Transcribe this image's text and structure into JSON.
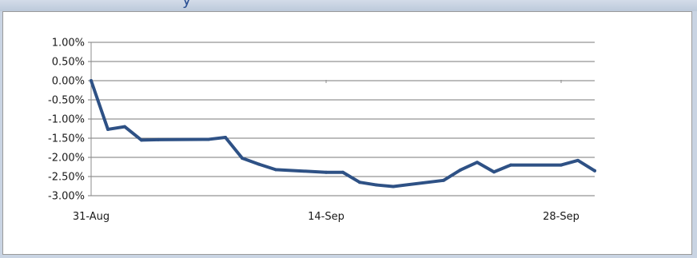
{
  "header": {
    "title_fragment": "y"
  },
  "colors": {
    "series_line": "#2e5185",
    "axis_line": "#8c8c8c",
    "grid_line": "#7a7a7a",
    "title_text": "#2a4f93"
  },
  "chart_data": {
    "type": "line",
    "title": "",
    "xlabel": "",
    "ylabel": "",
    "grid": true,
    "legend": "none",
    "x_tick_labels": [
      "31-Aug",
      "14-Sep",
      "28-Sep"
    ],
    "y_tick_labels": [
      "1.00%",
      "0.50%",
      "0.00%",
      "-0.50%",
      "-1.00%",
      "-1.50%",
      "-2.00%",
      "-2.50%",
      "-3.00%"
    ],
    "ylim": [
      -3.0,
      1.0
    ],
    "xlim": [
      "2015-08-31",
      "2015-09-30"
    ],
    "series": [
      {
        "x": [
          "2015-08-31",
          "2015-09-01",
          "2015-09-02",
          "2015-09-03",
          "2015-09-04",
          "2015-09-07",
          "2015-09-08",
          "2015-09-09",
          "2015-09-10",
          "2015-09-11",
          "2015-09-14",
          "2015-09-15",
          "2015-09-16",
          "2015-09-17",
          "2015-09-18",
          "2015-09-21",
          "2015-09-22",
          "2015-09-23",
          "2015-09-24",
          "2015-09-25",
          "2015-09-28",
          "2015-09-29",
          "2015-09-30"
        ],
        "values": [
          0.0,
          -1.27,
          -1.2,
          -1.55,
          -1.54,
          -1.53,
          -1.48,
          -2.02,
          -2.18,
          -2.32,
          -2.39,
          -2.39,
          -2.65,
          -2.72,
          -2.76,
          -2.6,
          -2.33,
          -2.13,
          -2.38,
          -2.2,
          -2.2,
          -2.08,
          -2.35
        ]
      }
    ]
  }
}
